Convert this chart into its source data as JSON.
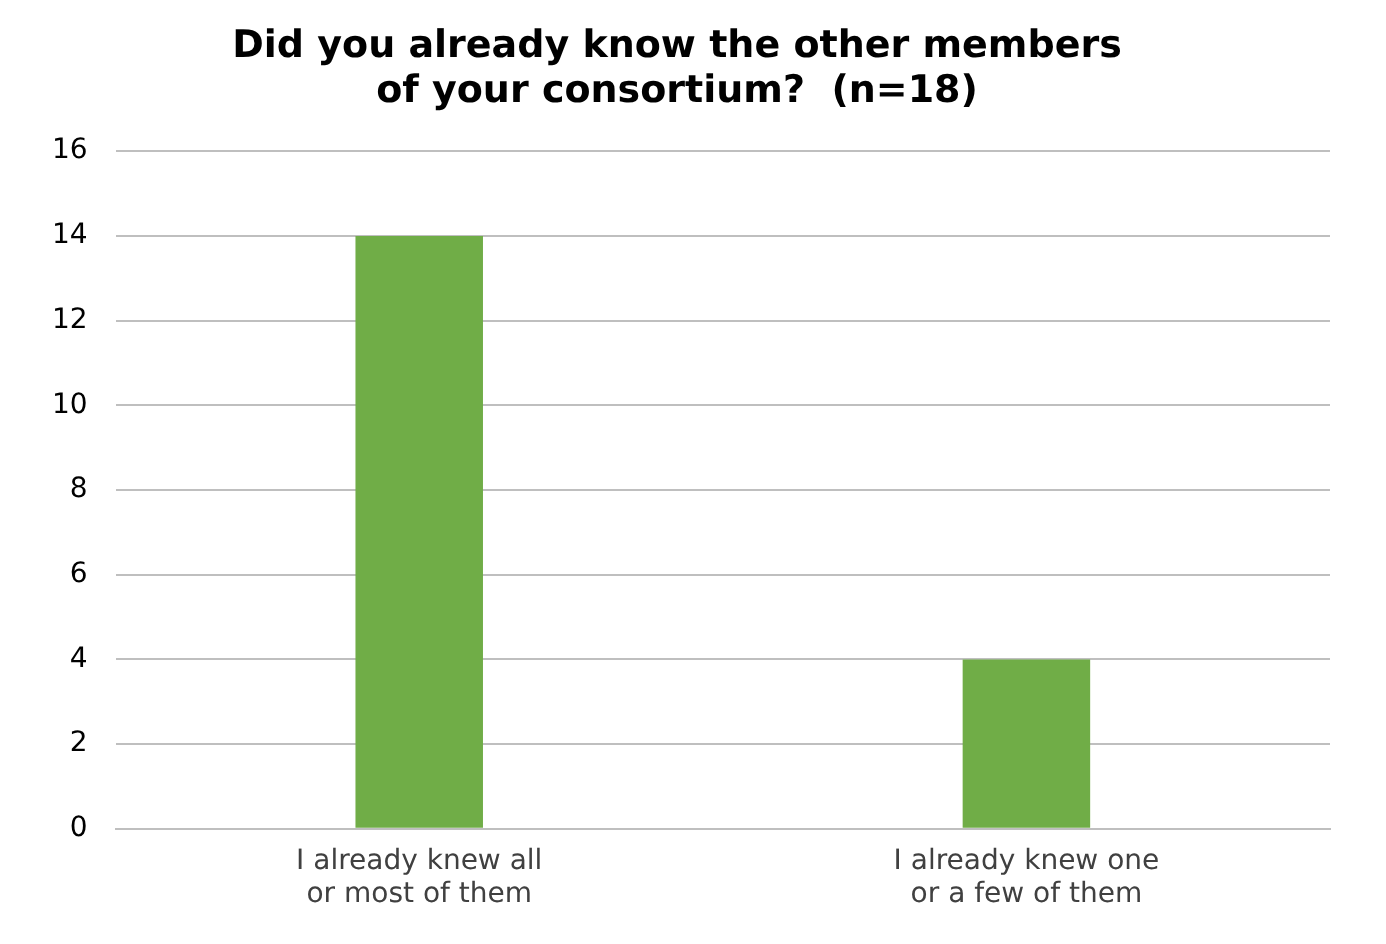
{
  "chart_data": {
    "type": "bar",
    "title": "Did you already know the other members of your consortium?  (n=18)",
    "categories": [
      "I already knew all or most of them",
      "I already knew one or a few of them"
    ],
    "values": [
      14,
      4
    ],
    "color": "#70ad47",
    "ylim": [
      0,
      16
    ],
    "yticks": [
      0,
      2,
      4,
      6,
      8,
      10,
      12,
      14,
      16
    ],
    "grid": "y"
  }
}
